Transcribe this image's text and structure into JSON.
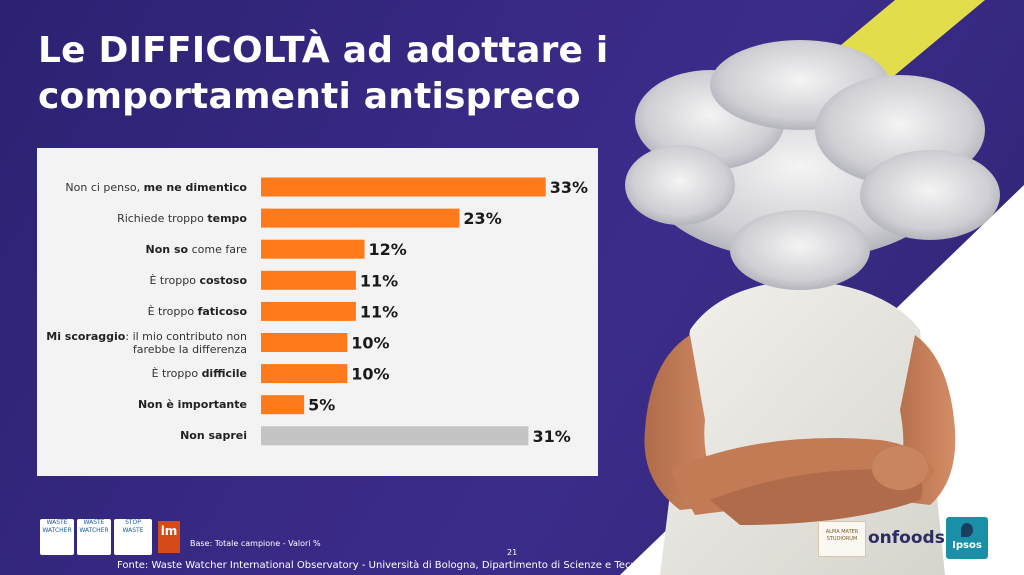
{
  "slide": {
    "title_line1": "Le DIFFICOLTÀ ad adottare i",
    "title_line2": "comportamenti antispreco",
    "base_note": "Base: Totale campione  - Valori %",
    "page_number": "21",
    "source": "Fonte: Waste Watcher International Observatory - Università di Bologna, Dipartimento di Scienze e Tecnologie A",
    "colors": {
      "background": "#2b2272",
      "accent_yellow": "#e2dd4a",
      "bar_orange": "#ff7a1a",
      "bar_grey": "#c4c4c4"
    }
  },
  "logos": {
    "waste_watcher_1": "WASTE WATCHER",
    "waste_watcher_2": "STOP WASTE",
    "lm": "lm",
    "university": "ALMA MATER STUDIORUM",
    "onfoods": "onfoods",
    "ipsos": "Ipsos"
  },
  "chart_data": {
    "type": "bar",
    "orientation": "horizontal",
    "categories": [
      {
        "plain_before": "Non ci penso, ",
        "bold": "me ne dimentico",
        "plain_after": ""
      },
      {
        "plain_before": "Richiede troppo ",
        "bold": "tempo",
        "plain_after": ""
      },
      {
        "plain_before": "",
        "bold": "Non so",
        "plain_after": " come fare"
      },
      {
        "plain_before": "È troppo ",
        "bold": "costoso",
        "plain_after": ""
      },
      {
        "plain_before": "È troppo ",
        "bold": "faticoso",
        "plain_after": ""
      },
      {
        "plain_before": "",
        "bold": "Mi scoraggio",
        "plain_after": ": il mio contributo non",
        "line2": "farebbe la differenza"
      },
      {
        "plain_before": "È troppo ",
        "bold": "difficile",
        "plain_after": ""
      },
      {
        "plain_before": "",
        "bold": "Non è importante",
        "plain_after": ""
      },
      {
        "plain_before": "",
        "bold": "Non saprei",
        "plain_after": ""
      }
    ],
    "values": [
      33,
      23,
      12,
      11,
      11,
      10,
      10,
      5,
      31
    ],
    "value_labels": [
      "33%",
      "23%",
      "12%",
      "11%",
      "11%",
      "10%",
      "10%",
      "5%",
      "31%"
    ],
    "bar_colors": [
      "#ff7a1a",
      "#ff7a1a",
      "#ff7a1a",
      "#ff7a1a",
      "#ff7a1a",
      "#ff7a1a",
      "#ff7a1a",
      "#ff7a1a",
      "#c4c4c4"
    ],
    "unit": "%",
    "xlim": [
      0,
      50
    ],
    "grid": false,
    "legend": "none"
  }
}
